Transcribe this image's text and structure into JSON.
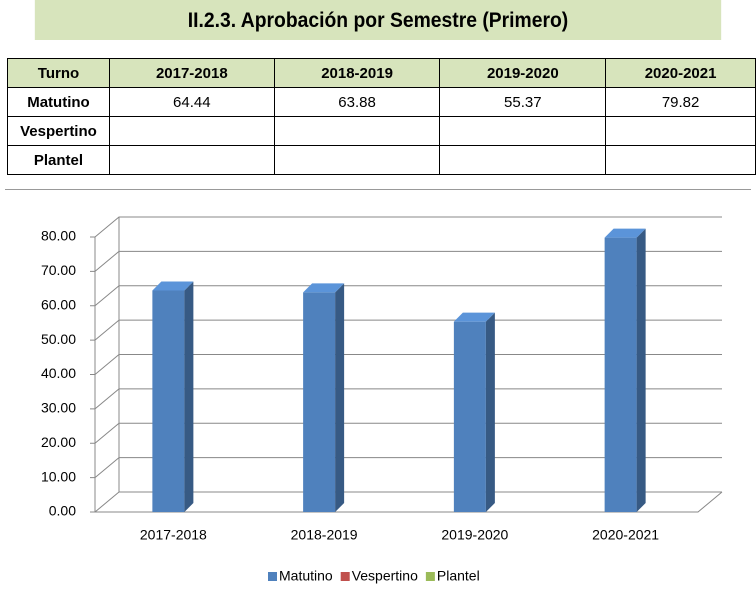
{
  "title": "II.2.3. Aprobación por Semestre (Primero)",
  "table": {
    "header": [
      "Turno",
      "2017-2018",
      "2018-2019",
      "2019-2020",
      "2020-2021"
    ],
    "rows": [
      [
        "Matutino",
        "64.44",
        "63.88",
        "55.37",
        "79.82"
      ],
      [
        "Vespertino"
      ],
      [
        "Plantel"
      ]
    ]
  },
  "chart_data": {
    "type": "bar3d",
    "categories": [
      "2017-2018",
      "2018-2019",
      "2019-2020",
      "2020-2021"
    ],
    "series": [
      {
        "name": "Matutino",
        "color": "#4f81bd",
        "values": [
          64.44,
          63.88,
          55.37,
          79.82
        ]
      },
      {
        "name": "Vespertino",
        "color": "#c0504d",
        "values": [
          null,
          null,
          null,
          null
        ]
      },
      {
        "name": "Plantel",
        "color": "#9bbb59",
        "values": [
          null,
          null,
          null,
          null
        ]
      }
    ],
    "ylim": [
      0,
      80
    ],
    "yticks": [
      {
        "value": 0,
        "label": "0.00"
      },
      {
        "value": 10,
        "label": "10.00"
      },
      {
        "value": 20,
        "label": "20.00"
      },
      {
        "value": 30,
        "label": "30.00"
      },
      {
        "value": 40,
        "label": "40.00"
      },
      {
        "value": 50,
        "label": "50.00"
      },
      {
        "value": 60,
        "label": "60.00"
      },
      {
        "value": 70,
        "label": "70.00"
      },
      {
        "value": 80,
        "label": "80.00"
      }
    ],
    "grid": true,
    "legend": "bottom"
  }
}
